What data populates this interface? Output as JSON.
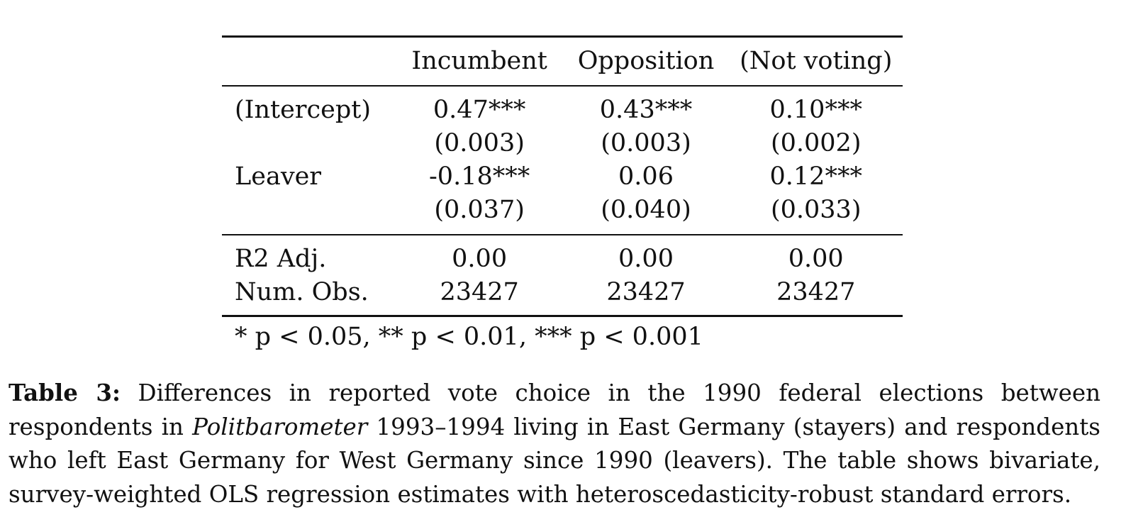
{
  "table": {
    "columns": [
      "Incumbent",
      "Opposition",
      "(Not voting)"
    ],
    "rows": [
      {
        "label": "(Intercept)",
        "values": [
          "0.47***",
          "0.43***",
          "0.10***"
        ]
      },
      {
        "label": "",
        "values": [
          "(0.003)",
          "(0.003)",
          "(0.002)"
        ]
      },
      {
        "label": "Leaver",
        "values": [
          "-0.18***",
          "0.06",
          "0.12***"
        ]
      },
      {
        "label": "",
        "values": [
          "(0.037)",
          "(0.040)",
          "(0.033)"
        ]
      }
    ],
    "stats": [
      {
        "label": "R2 Adj.",
        "values": [
          "0.00",
          "0.00",
          "0.00"
        ]
      },
      {
        "label": "Num. Obs.",
        "values": [
          "23427",
          "23427",
          "23427"
        ]
      }
    ],
    "notes": "* p < 0.05, ** p < 0.01, *** p < 0.001"
  },
  "caption": {
    "label": "Table 3:",
    "text_before": "Differences in reported vote choice in the 1990 federal elections between respondents in",
    "italic": "Politbarometer",
    "text_after": "1993–1994 living in East Germany (stayers) and respondents who left East Germany for West Germany since 1990 (leavers). The table shows bivariate, survey-weighted OLS regression estimates with heteroscedasticity-robust standard errors."
  }
}
